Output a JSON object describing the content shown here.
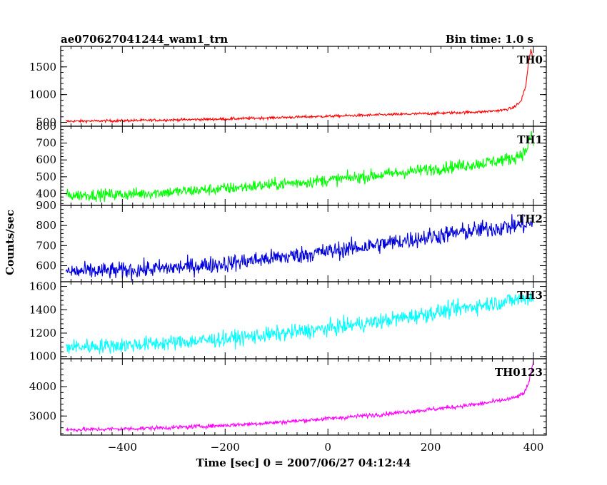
{
  "header": {
    "title_left": "ae070627041244_wam1_trn",
    "title_right": "Bin time: 1.0 s"
  },
  "chart_data": {
    "type": "line",
    "xlabel": "Time [sec] 0 = 2007/06/27 04:12:44",
    "ylabel": "Counts/sec",
    "xlim": [
      -520,
      425
    ],
    "xticks": [
      -400,
      -200,
      0,
      200,
      400
    ],
    "x_tick_labels": [
      "−400",
      "−200",
      "0",
      "200",
      "400"
    ],
    "x_range_data": [
      -510,
      400
    ],
    "bin_time": 1.0,
    "panels": [
      {
        "name": "TH0",
        "color": "#ff0000",
        "ylim": [
          430,
          1870
        ],
        "yticks": [
          500,
          1000,
          1500
        ],
        "trend": [
          [
            -510,
            520
          ],
          [
            -400,
            530
          ],
          [
            -200,
            560
          ],
          [
            0,
            610
          ],
          [
            200,
            660
          ],
          [
            300,
            690
          ],
          [
            340,
            720
          ],
          [
            360,
            760
          ],
          [
            375,
            870
          ],
          [
            385,
            1150
          ],
          [
            390,
            1550
          ],
          [
            395,
            1800
          ],
          [
            400,
            1600
          ]
        ],
        "noise": 30
      },
      {
        "name": "TH1",
        "color": "#00ff00",
        "ylim": [
          330,
          800
        ],
        "yticks": [
          400,
          500,
          600,
          700,
          800
        ],
        "trend": [
          [
            -510,
            390
          ],
          [
            -400,
            395
          ],
          [
            -300,
            410
          ],
          [
            -200,
            430
          ],
          [
            -100,
            455
          ],
          [
            0,
            480
          ],
          [
            100,
            510
          ],
          [
            200,
            545
          ],
          [
            300,
            580
          ],
          [
            360,
            610
          ],
          [
            385,
            650
          ],
          [
            395,
            740
          ],
          [
            400,
            700
          ]
        ],
        "noise": 45
      },
      {
        "name": "TH2",
        "color": "#0000dd",
        "ylim": [
          520,
          900
        ],
        "yticks": [
          600,
          700,
          800,
          900
        ],
        "trend": [
          [
            -510,
            570
          ],
          [
            -400,
            575
          ],
          [
            -300,
            590
          ],
          [
            -200,
            610
          ],
          [
            -100,
            640
          ],
          [
            0,
            670
          ],
          [
            100,
            705
          ],
          [
            200,
            745
          ],
          [
            300,
            780
          ],
          [
            400,
            810
          ]
        ],
        "noise": 55
      },
      {
        "name": "TH3",
        "color": "#00ffff",
        "ylim": [
          980,
          1640
        ],
        "yticks": [
          1000,
          1200,
          1400,
          1600
        ],
        "trend": [
          [
            -510,
            1080
          ],
          [
            -400,
            1095
          ],
          [
            -300,
            1120
          ],
          [
            -200,
            1150
          ],
          [
            -100,
            1190
          ],
          [
            0,
            1240
          ],
          [
            100,
            1300
          ],
          [
            200,
            1370
          ],
          [
            300,
            1440
          ],
          [
            400,
            1510
          ]
        ],
        "noise": 85
      },
      {
        "name": "TH0123",
        "color": "#ff00ff",
        "ylim": [
          2350,
          4950
        ],
        "yticks": [
          3000,
          4000
        ],
        "trend": [
          [
            -510,
            2530
          ],
          [
            -400,
            2560
          ],
          [
            -300,
            2610
          ],
          [
            -200,
            2680
          ],
          [
            -100,
            2780
          ],
          [
            0,
            2910
          ],
          [
            100,
            3050
          ],
          [
            200,
            3220
          ],
          [
            300,
            3420
          ],
          [
            360,
            3600
          ],
          [
            380,
            3750
          ],
          [
            390,
            4050
          ],
          [
            395,
            4450
          ],
          [
            400,
            4850
          ]
        ],
        "noise": 90
      }
    ]
  }
}
